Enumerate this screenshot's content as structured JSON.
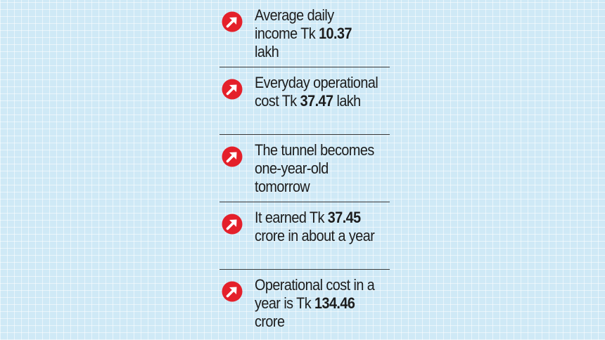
{
  "facts": [
    {
      "icon": "arrow-up-right-icon",
      "pre": "Average daily income Tk ",
      "bold": "10.37",
      "post": " lakh"
    },
    {
      "icon": "arrow-up-right-icon",
      "pre": "Everyday operational cost Tk ",
      "bold": "37.47",
      "post": " lakh"
    },
    {
      "icon": "arrow-up-right-icon",
      "pre": "The tunnel becomes one-year-old tomorrow",
      "bold": "",
      "post": ""
    },
    {
      "icon": "arrow-up-right-icon",
      "pre": "It earned Tk ",
      "bold": "37.45",
      "post": " crore in about a year"
    },
    {
      "icon": "arrow-up-right-icon",
      "pre": "Operational cost in a year is Tk ",
      "bold": "134.46",
      "post": " crore"
    }
  ],
  "colors": {
    "background": "#cfe9f6",
    "accent": "#e4202a",
    "text": "#1c1c1c",
    "divider": "#3a3a3a"
  }
}
